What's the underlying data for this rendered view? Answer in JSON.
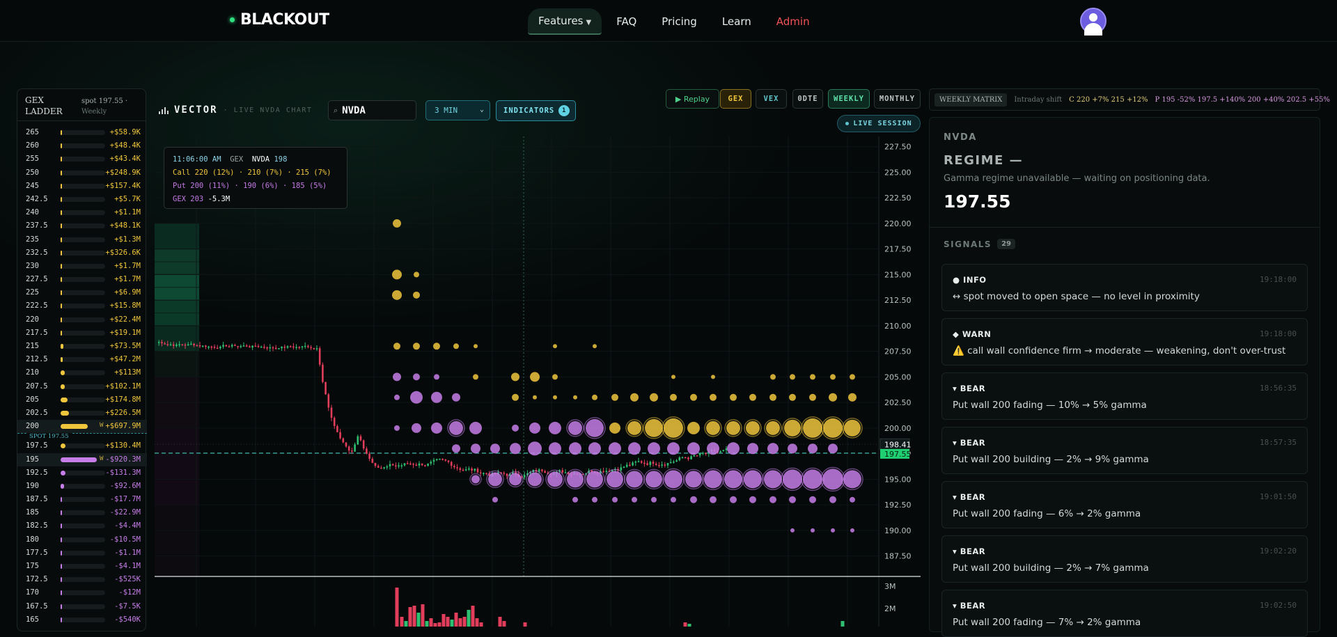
{
  "nav": {
    "logo": "BLACKOUT",
    "links": [
      {
        "label": "Features",
        "active": true,
        "dropdown": true
      },
      {
        "label": "FAQ"
      },
      {
        "label": "Pricing"
      },
      {
        "label": "Learn"
      },
      {
        "label": "Admin",
        "color": "#ef5358"
      }
    ]
  },
  "ladder": {
    "title": "GEX LADDER",
    "spot": "spot 197.55 ·",
    "period": "Weekly",
    "spot_marker": "SPOT 197.55",
    "rows": [
      {
        "strike": "265",
        "value": "+$58.9K",
        "bar": 0.01,
        "type": "call"
      },
      {
        "strike": "260",
        "value": "+$48.4K",
        "bar": 0.01,
        "type": "call"
      },
      {
        "strike": "255",
        "value": "+$43.4K",
        "bar": 0.01,
        "type": "call"
      },
      {
        "strike": "250",
        "value": "+$248.9K",
        "bar": 0.01,
        "type": "call"
      },
      {
        "strike": "245",
        "value": "+$157.4K",
        "bar": 0.01,
        "type": "call"
      },
      {
        "strike": "242.5",
        "value": "+$5.7K",
        "bar": 0.01,
        "type": "call"
      },
      {
        "strike": "240",
        "value": "+$1.1M",
        "bar": 0.01,
        "type": "call"
      },
      {
        "strike": "237.5",
        "value": "+$48.1K",
        "bar": 0.01,
        "type": "call"
      },
      {
        "strike": "235",
        "value": "+$1.3M",
        "bar": 0.01,
        "type": "call"
      },
      {
        "strike": "232.5",
        "value": "+$326.6K",
        "bar": 0.01,
        "type": "call"
      },
      {
        "strike": "230",
        "value": "+$1.7M",
        "bar": 0.01,
        "type": "call"
      },
      {
        "strike": "227.5",
        "value": "+$1.7M",
        "bar": 0.01,
        "type": "call"
      },
      {
        "strike": "225",
        "value": "+$6.9M",
        "bar": 0.01,
        "type": "call"
      },
      {
        "strike": "222.5",
        "value": "+$15.8M",
        "bar": 0.02,
        "type": "call"
      },
      {
        "strike": "220",
        "value": "+$22.4M",
        "bar": 0.03,
        "type": "call"
      },
      {
        "strike": "217.5",
        "value": "+$19.1M",
        "bar": 0.03,
        "type": "call"
      },
      {
        "strike": "215",
        "value": "+$73.5M",
        "bar": 0.08,
        "type": "call"
      },
      {
        "strike": "212.5",
        "value": "+$47.2M",
        "bar": 0.06,
        "type": "call"
      },
      {
        "strike": "210",
        "value": "+$113M",
        "bar": 0.12,
        "type": "call"
      },
      {
        "strike": "207.5",
        "value": "+$102.1M",
        "bar": 0.11,
        "type": "call"
      },
      {
        "strike": "205",
        "value": "+$174.8M",
        "bar": 0.19,
        "type": "call"
      },
      {
        "strike": "202.5",
        "value": "+$226.5M",
        "bar": 0.24,
        "type": "call"
      },
      {
        "strike": "200",
        "value": "+$697.9M",
        "bar": 0.75,
        "type": "call",
        "highlight": true,
        "flag": "W"
      },
      {
        "spot": true
      },
      {
        "strike": "197.5",
        "value": "+$130.4M",
        "bar": 0.14,
        "type": "call"
      },
      {
        "strike": "195",
        "value": "-$920.3M",
        "bar": 1.0,
        "type": "put",
        "highlight": true,
        "flag": "W"
      },
      {
        "strike": "192.5",
        "value": "-$131.3M",
        "bar": 0.14,
        "type": "put"
      },
      {
        "strike": "190",
        "value": "-$92.6M",
        "bar": 0.1,
        "type": "put"
      },
      {
        "strike": "187.5",
        "value": "-$17.7M",
        "bar": 0.02,
        "type": "put"
      },
      {
        "strike": "185",
        "value": "-$22.9M",
        "bar": 0.02,
        "type": "put"
      },
      {
        "strike": "182.5",
        "value": "-$4.4M",
        "bar": 0.01,
        "type": "put"
      },
      {
        "strike": "180",
        "value": "-$10.5M",
        "bar": 0.01,
        "type": "put"
      },
      {
        "strike": "177.5",
        "value": "-$1.1M",
        "bar": 0.01,
        "type": "put"
      },
      {
        "strike": "175",
        "value": "-$4.1M",
        "bar": 0.01,
        "type": "put"
      },
      {
        "strike": "172.5",
        "value": "-$525K",
        "bar": 0.01,
        "type": "put"
      },
      {
        "strike": "170",
        "value": "-$12M",
        "bar": 0.01,
        "type": "put"
      },
      {
        "strike": "167.5",
        "value": "-$7.5K",
        "bar": 0.01,
        "type": "put"
      },
      {
        "strike": "165",
        "value": "-$540K",
        "bar": 0.01,
        "type": "put"
      }
    ]
  },
  "toolbar": {
    "title": "VECTOR",
    "subtitle": "· LIVE NVDA CHART",
    "ticker": "NVDA",
    "timeframe": "3 MIN",
    "indicators_label": "INDICATORS",
    "indicators_count": "1",
    "replay": "▶ Replay",
    "modes": [
      "GEX",
      "VEX",
      "0DTE",
      "WEEKLY",
      "MONTHLY"
    ],
    "live": "LIVE SESSION"
  },
  "tooltip": {
    "time": "11:06:00 AM",
    "metric": "GEX",
    "ticker": "NVDA",
    "price": "198",
    "call": "Call 220 (12%) · 210 (7%) · 215 (7%)",
    "put": "Put 200 (11%) · 190 (6%) · 185 (5%)",
    "gex_label": "GEX 203",
    "gex_value": "-5.3M"
  },
  "chart_data": {
    "type": "scatter",
    "title": "",
    "ylim": [
      185.5,
      228.5
    ],
    "y_ticks": [
      "227.50",
      "225.00",
      "222.50",
      "220.00",
      "217.50",
      "215.00",
      "212.50",
      "210.00",
      "207.50",
      "205.00",
      "202.50",
      "200.00",
      "197.50",
      "195.00",
      "192.50",
      "190.00",
      "187.50"
    ],
    "price_label": "198.41",
    "last_price_label": "197.55",
    "volume_ticks": [
      "3M",
      "2M"
    ],
    "colors": {
      "call": "#f0c63c",
      "put": "#c77ee8",
      "up": "#2fbf71",
      "down": "#e23d5a"
    }
  },
  "matrix": {
    "tag": "WEEKLY MATRIX",
    "shift": "Intraday shift",
    "calls": "C 220 +7% 215 +12%",
    "puts": "P 195 -52% 197.5 +140% 200 +40% 202.5 +55%"
  },
  "panel": {
    "ticker": "NVDA",
    "regime": "REGIME —",
    "desc": "Gamma regime unavailable — waiting on positioning data.",
    "price": "197.55",
    "signals_label": "SIGNALS",
    "signals_count": "29",
    "signals": [
      {
        "level": "● INFO",
        "time": "19:18:00",
        "msg": "↔ spot moved to open space — no level in proximity"
      },
      {
        "level": "◆ WARN",
        "time": "19:18:00",
        "msg": "⚠️ call wall confidence firm → moderate — weakening, don't over-trust"
      },
      {
        "level": "▾ BEAR",
        "time": "18:56:35",
        "msg": "Put wall 200 fading — 10% → 5% gamma"
      },
      {
        "level": "▾ BEAR",
        "time": "18:57:35",
        "msg": "Put wall 200 building — 2% → 9% gamma"
      },
      {
        "level": "▾ BEAR",
        "time": "19:01:50",
        "msg": "Put wall 200 fading — 6% → 2% gamma"
      },
      {
        "level": "▾ BEAR",
        "time": "19:02:20",
        "msg": "Put wall 200 building — 2% → 7% gamma"
      },
      {
        "level": "▾ BEAR",
        "time": "19:02:50",
        "msg": "Put wall 200 fading — 7% → 2% gamma"
      }
    ]
  }
}
